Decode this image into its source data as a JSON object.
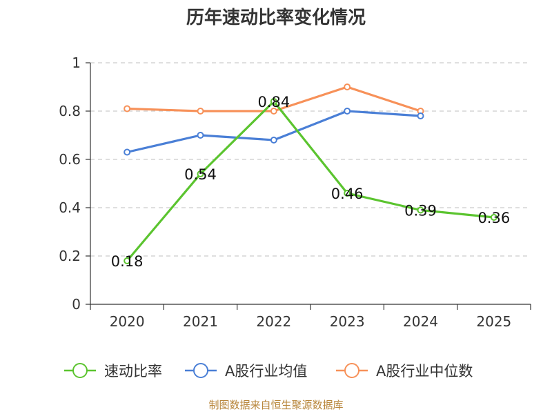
{
  "chart_data": {
    "type": "line",
    "title": "历年速动比率变化情况",
    "categories": [
      "2020",
      "2021",
      "2022",
      "2023",
      "2024",
      "2025"
    ],
    "y_ticks": [
      "0",
      "0.2",
      "0.4",
      "0.6",
      "0.8",
      "1"
    ],
    "ylim": [
      0,
      1
    ],
    "grid": true,
    "legend_position": "bottom",
    "series": [
      {
        "name": "速动比率",
        "color": "#5bc42f",
        "values": [
          0.18,
          0.54,
          0.84,
          0.46,
          0.39,
          0.36
        ],
        "labels": [
          "0.18",
          "0.54",
          "0.84",
          "0.46",
          "0.39",
          "0.36"
        ]
      },
      {
        "name": "A股行业均值",
        "color": "#4a7fd6",
        "values": [
          0.63,
          0.7,
          0.68,
          0.8,
          0.78,
          null
        ]
      },
      {
        "name": "A股行业中位数",
        "color": "#f79159",
        "values": [
          0.81,
          0.8,
          0.8,
          0.9,
          0.8,
          null
        ]
      }
    ],
    "source": "制图数据来自恒生聚源数据库"
  }
}
